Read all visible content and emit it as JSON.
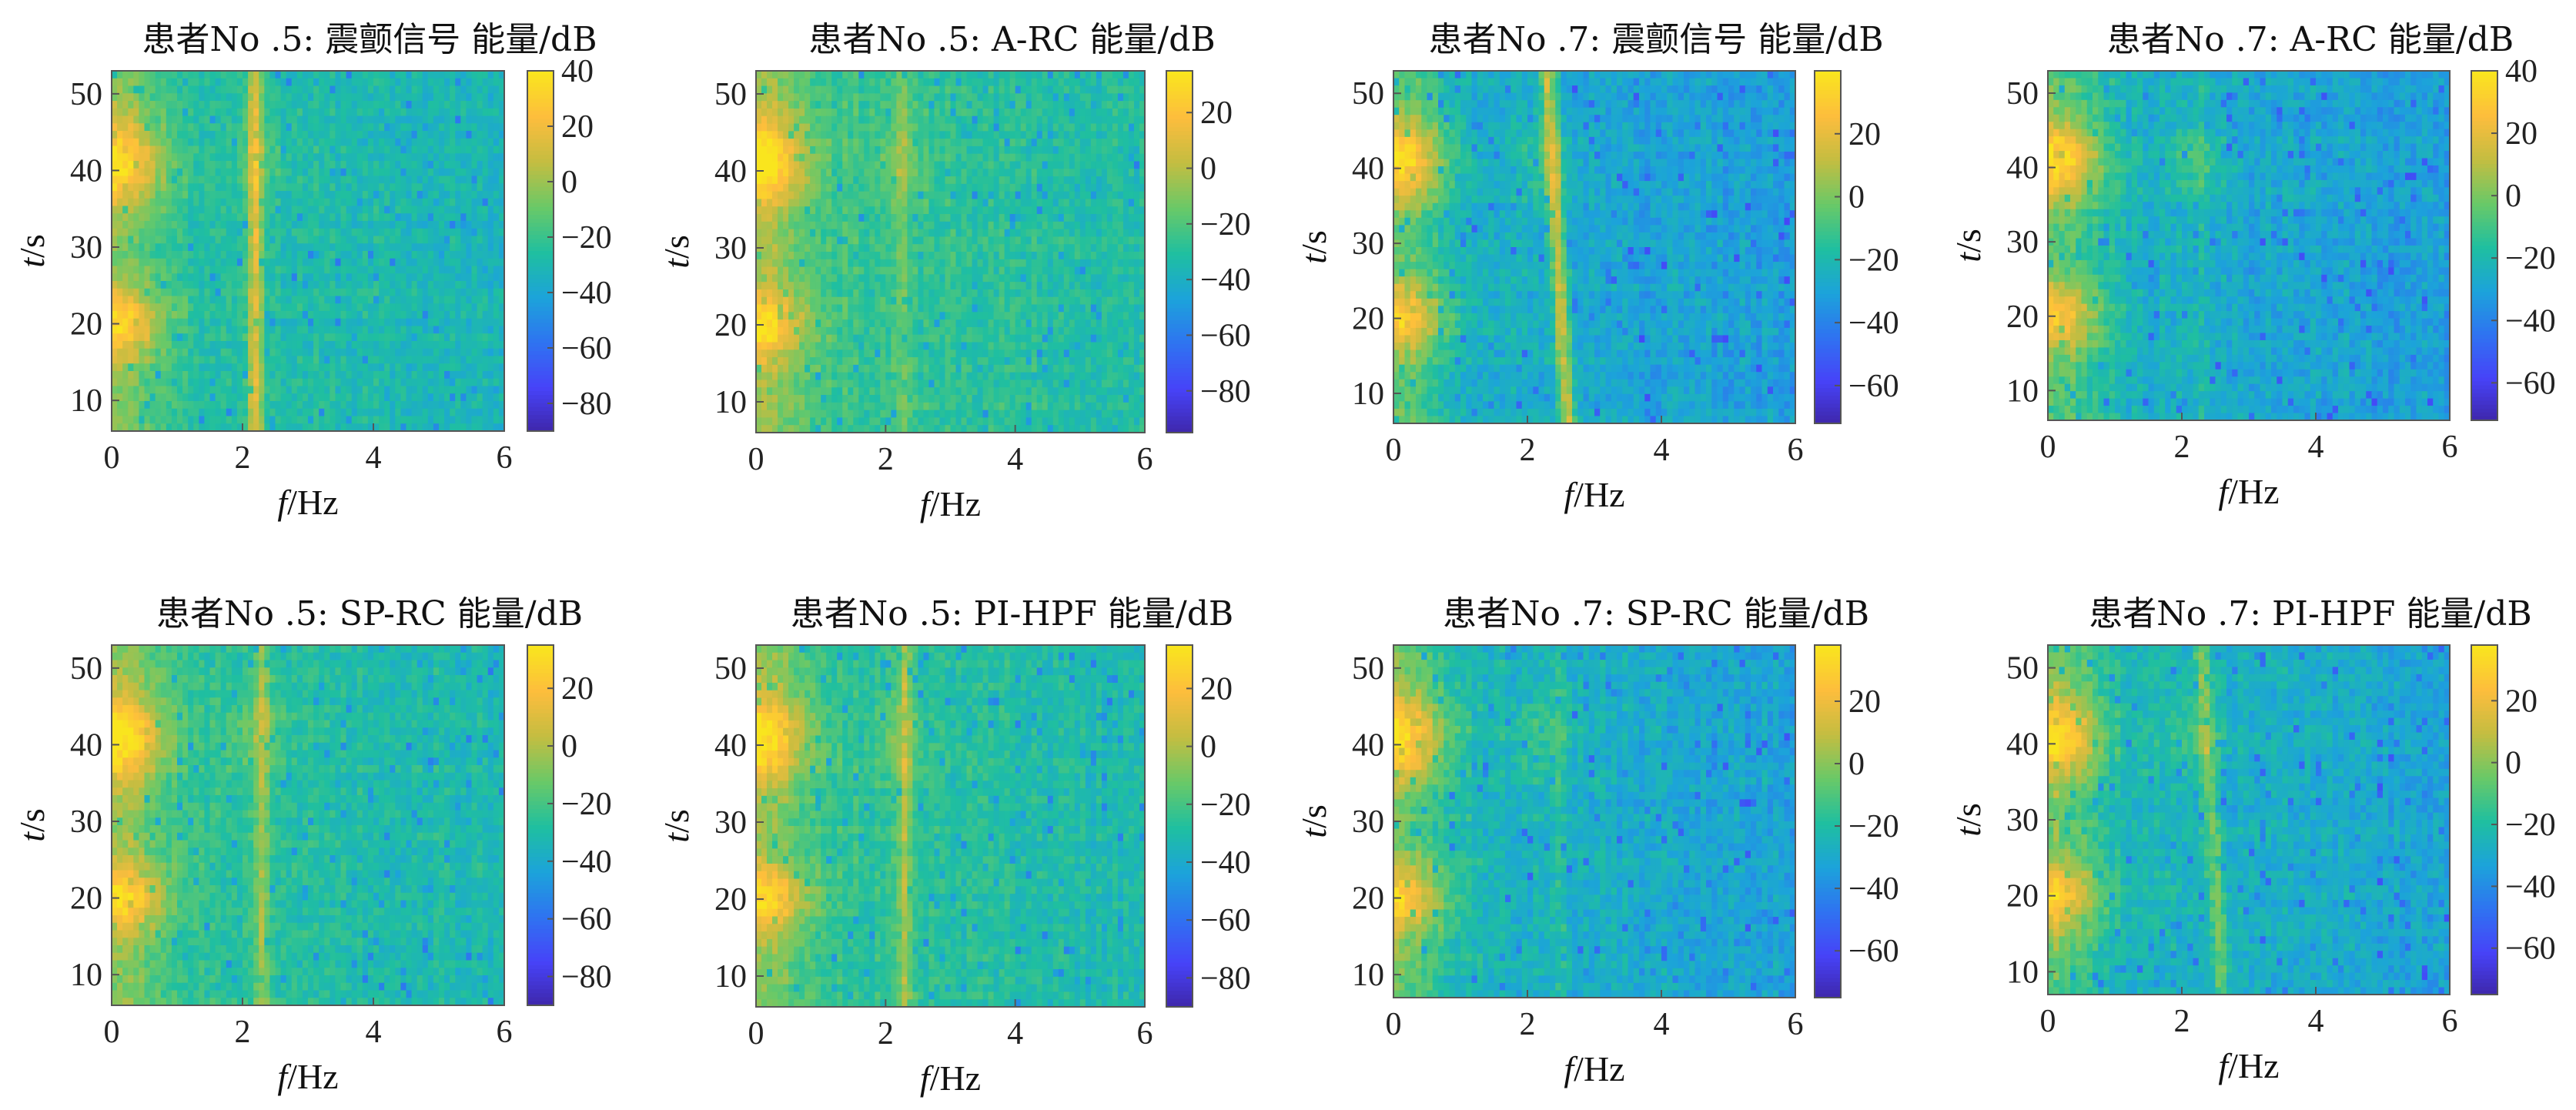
{
  "figure": {
    "rows": 2,
    "cols": 4
  },
  "colormap": [
    "#3e26a8",
    "#4743f8",
    "#2f73f1",
    "#1ca3da",
    "#1fbfa0",
    "#69c968",
    "#c3bd41",
    "#fdbd3d",
    "#f9e51e"
  ],
  "chart_data": [
    {
      "type": "heatmap",
      "title": "患者No .5: 震颤信号 能量/dB",
      "xlabel_italic": "f",
      "xlabel_unit": "/Hz",
      "ylabel_italic": "t",
      "ylabel_unit": "/s",
      "xlim": [
        0,
        6
      ],
      "xticks": [
        0,
        2,
        4,
        6
      ],
      "ylim": [
        6,
        53
      ],
      "yticks": [
        10,
        20,
        30,
        40,
        50
      ],
      "clim": [
        -90,
        40
      ],
      "cticks": [
        40,
        20,
        0,
        -20,
        -40,
        -60,
        -80
      ],
      "tremor_freq": [
        2.2,
        2.2
      ],
      "tremor_strength": 0.9,
      "blob_strength": [
        1.0,
        1.0
      ],
      "seed": 11
    },
    {
      "type": "heatmap",
      "title": "患者No .5: A-RC 能量/dB",
      "xlabel_italic": "f",
      "xlabel_unit": "/Hz",
      "ylabel_italic": "t",
      "ylabel_unit": "/s",
      "xlim": [
        0,
        6
      ],
      "xticks": [
        0,
        2,
        4,
        6
      ],
      "ylim": [
        6,
        53
      ],
      "yticks": [
        10,
        20,
        30,
        40,
        50
      ],
      "clim": [
        -95,
        35
      ],
      "cticks": [
        20,
        0,
        -20,
        -40,
        -60,
        -80
      ],
      "tremor_freq": [
        2.25,
        2.25
      ],
      "tremor_strength": 0.25,
      "blob_strength": [
        1.0,
        0.95
      ],
      "seed": 23
    },
    {
      "type": "heatmap",
      "title": "患者No .7: 震颤信号 能量/dB",
      "xlabel_italic": "f",
      "xlabel_unit": "/Hz",
      "ylabel_italic": "t",
      "ylabel_unit": "/s",
      "xlim": [
        0,
        6
      ],
      "xticks": [
        0,
        2,
        4,
        6
      ],
      "ylim": [
        6,
        53
      ],
      "yticks": [
        10,
        20,
        30,
        40,
        50
      ],
      "clim": [
        -72,
        40
      ],
      "cticks": [
        20,
        0,
        -20,
        -40,
        -60
      ],
      "tremor_freq": [
        2.6,
        2.3
      ],
      "tremor_strength": 0.85,
      "blob_strength": [
        0.9,
        0.9
      ],
      "seed": 37
    },
    {
      "type": "heatmap",
      "title": "患者No .7: A-RC 能量/dB",
      "xlabel_italic": "f",
      "xlabel_unit": "/Hz",
      "ylabel_italic": "t",
      "ylabel_unit": "/s",
      "xlim": [
        0,
        6
      ],
      "xticks": [
        0,
        2,
        4,
        6
      ],
      "ylim": [
        6,
        53
      ],
      "yticks": [
        10,
        20,
        30,
        40,
        50
      ],
      "clim": [
        -72,
        40
      ],
      "cticks": [
        40,
        20,
        0,
        -20,
        -40,
        -60
      ],
      "tremor_freq": [
        2.3,
        2.3
      ],
      "tremor_strength": 0.2,
      "blob_strength": [
        0.95,
        0.9
      ],
      "seed": 41
    },
    {
      "type": "heatmap",
      "title": "患者No .5: SP-RC  能量/dB",
      "xlabel_italic": "f",
      "xlabel_unit": "/Hz",
      "ylabel_italic": "t",
      "ylabel_unit": "/s",
      "xlim": [
        0,
        6
      ],
      "xticks": [
        0,
        2,
        4,
        6
      ],
      "ylim": [
        6,
        53
      ],
      "yticks": [
        10,
        20,
        30,
        40,
        50
      ],
      "clim": [
        -90,
        35
      ],
      "cticks": [
        20,
        0,
        -20,
        -40,
        -60,
        -80
      ],
      "tremor_freq": [
        2.3,
        2.3
      ],
      "tremor_strength": 0.45,
      "blob_strength": [
        1.0,
        1.0
      ],
      "seed": 53
    },
    {
      "type": "heatmap",
      "title": "患者No .5: PI-HPF 能量/dB",
      "xlabel_italic": "f",
      "xlabel_unit": "/Hz",
      "ylabel_italic": "t",
      "ylabel_unit": "/s",
      "xlim": [
        0,
        6
      ],
      "xticks": [
        0,
        2,
        4,
        6
      ],
      "ylim": [
        6,
        53
      ],
      "yticks": [
        10,
        20,
        30,
        40,
        50
      ],
      "clim": [
        -90,
        35
      ],
      "cticks": [
        20,
        0,
        -20,
        -40,
        -60,
        -80
      ],
      "tremor_freq": [
        2.3,
        2.3
      ],
      "tremor_strength": 0.55,
      "blob_strength": [
        0.95,
        0.95
      ],
      "seed": 67
    },
    {
      "type": "heatmap",
      "title": "患者No .7: SP-RC   能量/dB",
      "xlabel_italic": "f",
      "xlabel_unit": "/Hz",
      "ylabel_italic": "t",
      "ylabel_unit": "/s",
      "xlim": [
        0,
        6
      ],
      "xticks": [
        0,
        2,
        4,
        6
      ],
      "ylim": [
        7,
        53
      ],
      "yticks": [
        10,
        20,
        30,
        40,
        50
      ],
      "clim": [
        -75,
        38
      ],
      "cticks": [
        20,
        0,
        -20,
        -40,
        -60
      ],
      "tremor_freq": [
        2.5,
        2.5
      ],
      "tremor_strength": 0.15,
      "blob_strength": [
        0.9,
        0.9
      ],
      "seed": 79
    },
    {
      "type": "heatmap",
      "title": "患者No .7: PI-HPF 能量/dB",
      "xlabel_italic": "f",
      "xlabel_unit": "/Hz",
      "ylabel_italic": "t",
      "ylabel_unit": "/s",
      "xlim": [
        0,
        6
      ],
      "xticks": [
        0,
        2,
        4,
        6
      ],
      "ylim": [
        7,
        53
      ],
      "yticks": [
        10,
        20,
        30,
        40,
        50
      ],
      "clim": [
        -75,
        38
      ],
      "cticks": [
        20,
        0,
        -20,
        -40,
        -60
      ],
      "tremor_freq": [
        2.6,
        2.3
      ],
      "tremor_strength": 0.5,
      "blob_strength": [
        0.95,
        0.9
      ],
      "seed": 83
    }
  ]
}
